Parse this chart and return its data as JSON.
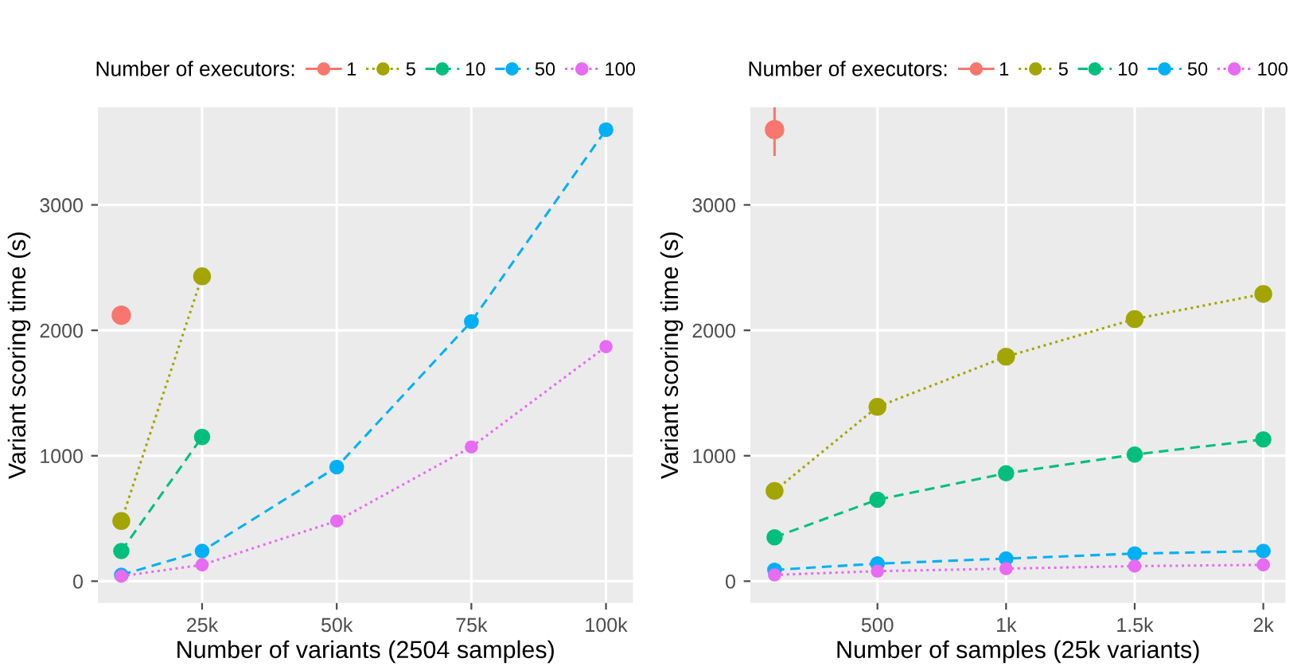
{
  "chart_data": [
    {
      "type": "line",
      "legend_title": "Number of executors:",
      "legend": "top",
      "xlabel": "Number of variants (2504 samples)",
      "ylabel": "Variant scoring time (s)",
      "x": [
        10000,
        25000,
        50000,
        75000,
        100000
      ],
      "xlim": [
        5650,
        105000
      ],
      "xticks": [
        {
          "value": 25000,
          "label": "25k"
        },
        {
          "value": 50000,
          "label": "50k"
        },
        {
          "value": 75000,
          "label": "75k"
        },
        {
          "value": 100000,
          "label": "100k"
        }
      ],
      "ylim": [
        -174,
        3779
      ],
      "yticks": [
        0,
        1000,
        2000,
        3000
      ],
      "grid": true,
      "marker": "circle",
      "series": [
        {
          "name": "1",
          "color": "#F8766D",
          "line_style": "solid",
          "values": [
            2120,
            null,
            null,
            null,
            null
          ]
        },
        {
          "name": "5",
          "color": "#A3A500",
          "line_style": "dotted",
          "values": [
            480,
            2430,
            null,
            null,
            null
          ]
        },
        {
          "name": "10",
          "color": "#00BF7D",
          "line_style": "dashed",
          "values": [
            240,
            1150,
            null,
            null,
            null
          ]
        },
        {
          "name": "50",
          "color": "#00B0F6",
          "line_style": "dashed",
          "values": [
            50,
            240,
            910,
            2070,
            3600
          ]
        },
        {
          "name": "100",
          "color": "#E76BF3",
          "line_style": "dotted",
          "values": [
            40,
            130,
            480,
            1070,
            1870
          ]
        }
      ]
    },
    {
      "type": "line",
      "legend_title": "Number of executors:",
      "legend": "top",
      "xlabel": "Number of samples (25k variants)",
      "ylabel": "Variant scoring time (s)",
      "x": [
        100,
        500,
        1000,
        1500,
        2000
      ],
      "xlim": [
        6,
        2086
      ],
      "xticks": [
        500,
        {
          "value": 1000,
          "label": "1k"
        },
        {
          "value": 1500,
          "label": "1.5k"
        },
        {
          "value": 2000,
          "label": "2k"
        }
      ],
      "ylim": [
        -174,
        3779
      ],
      "yticks": [
        0,
        1000,
        2000,
        3000
      ],
      "grid": true,
      "marker": "circle",
      "series": [
        {
          "name": "1",
          "color": "#F8766D",
          "line_style": "solid",
          "values": [
            3600,
            null,
            null,
            null,
            null
          ],
          "errors": [
            [
              3390,
              3779
            ],
            null,
            null,
            null,
            null
          ]
        },
        {
          "name": "5",
          "color": "#A3A500",
          "line_style": "dotted",
          "values": [
            720,
            1390,
            1790,
            2090,
            2290
          ]
        },
        {
          "name": "10",
          "color": "#00BF7D",
          "line_style": "dashed",
          "values": [
            350,
            650,
            860,
            1010,
            1130
          ]
        },
        {
          "name": "50",
          "color": "#00B0F6",
          "line_style": "dashed",
          "values": [
            90,
            140,
            180,
            220,
            240
          ]
        },
        {
          "name": "100",
          "color": "#E76BF3",
          "line_style": "dotted",
          "values": [
            50,
            80,
            100,
            120,
            130
          ]
        }
      ]
    }
  ]
}
